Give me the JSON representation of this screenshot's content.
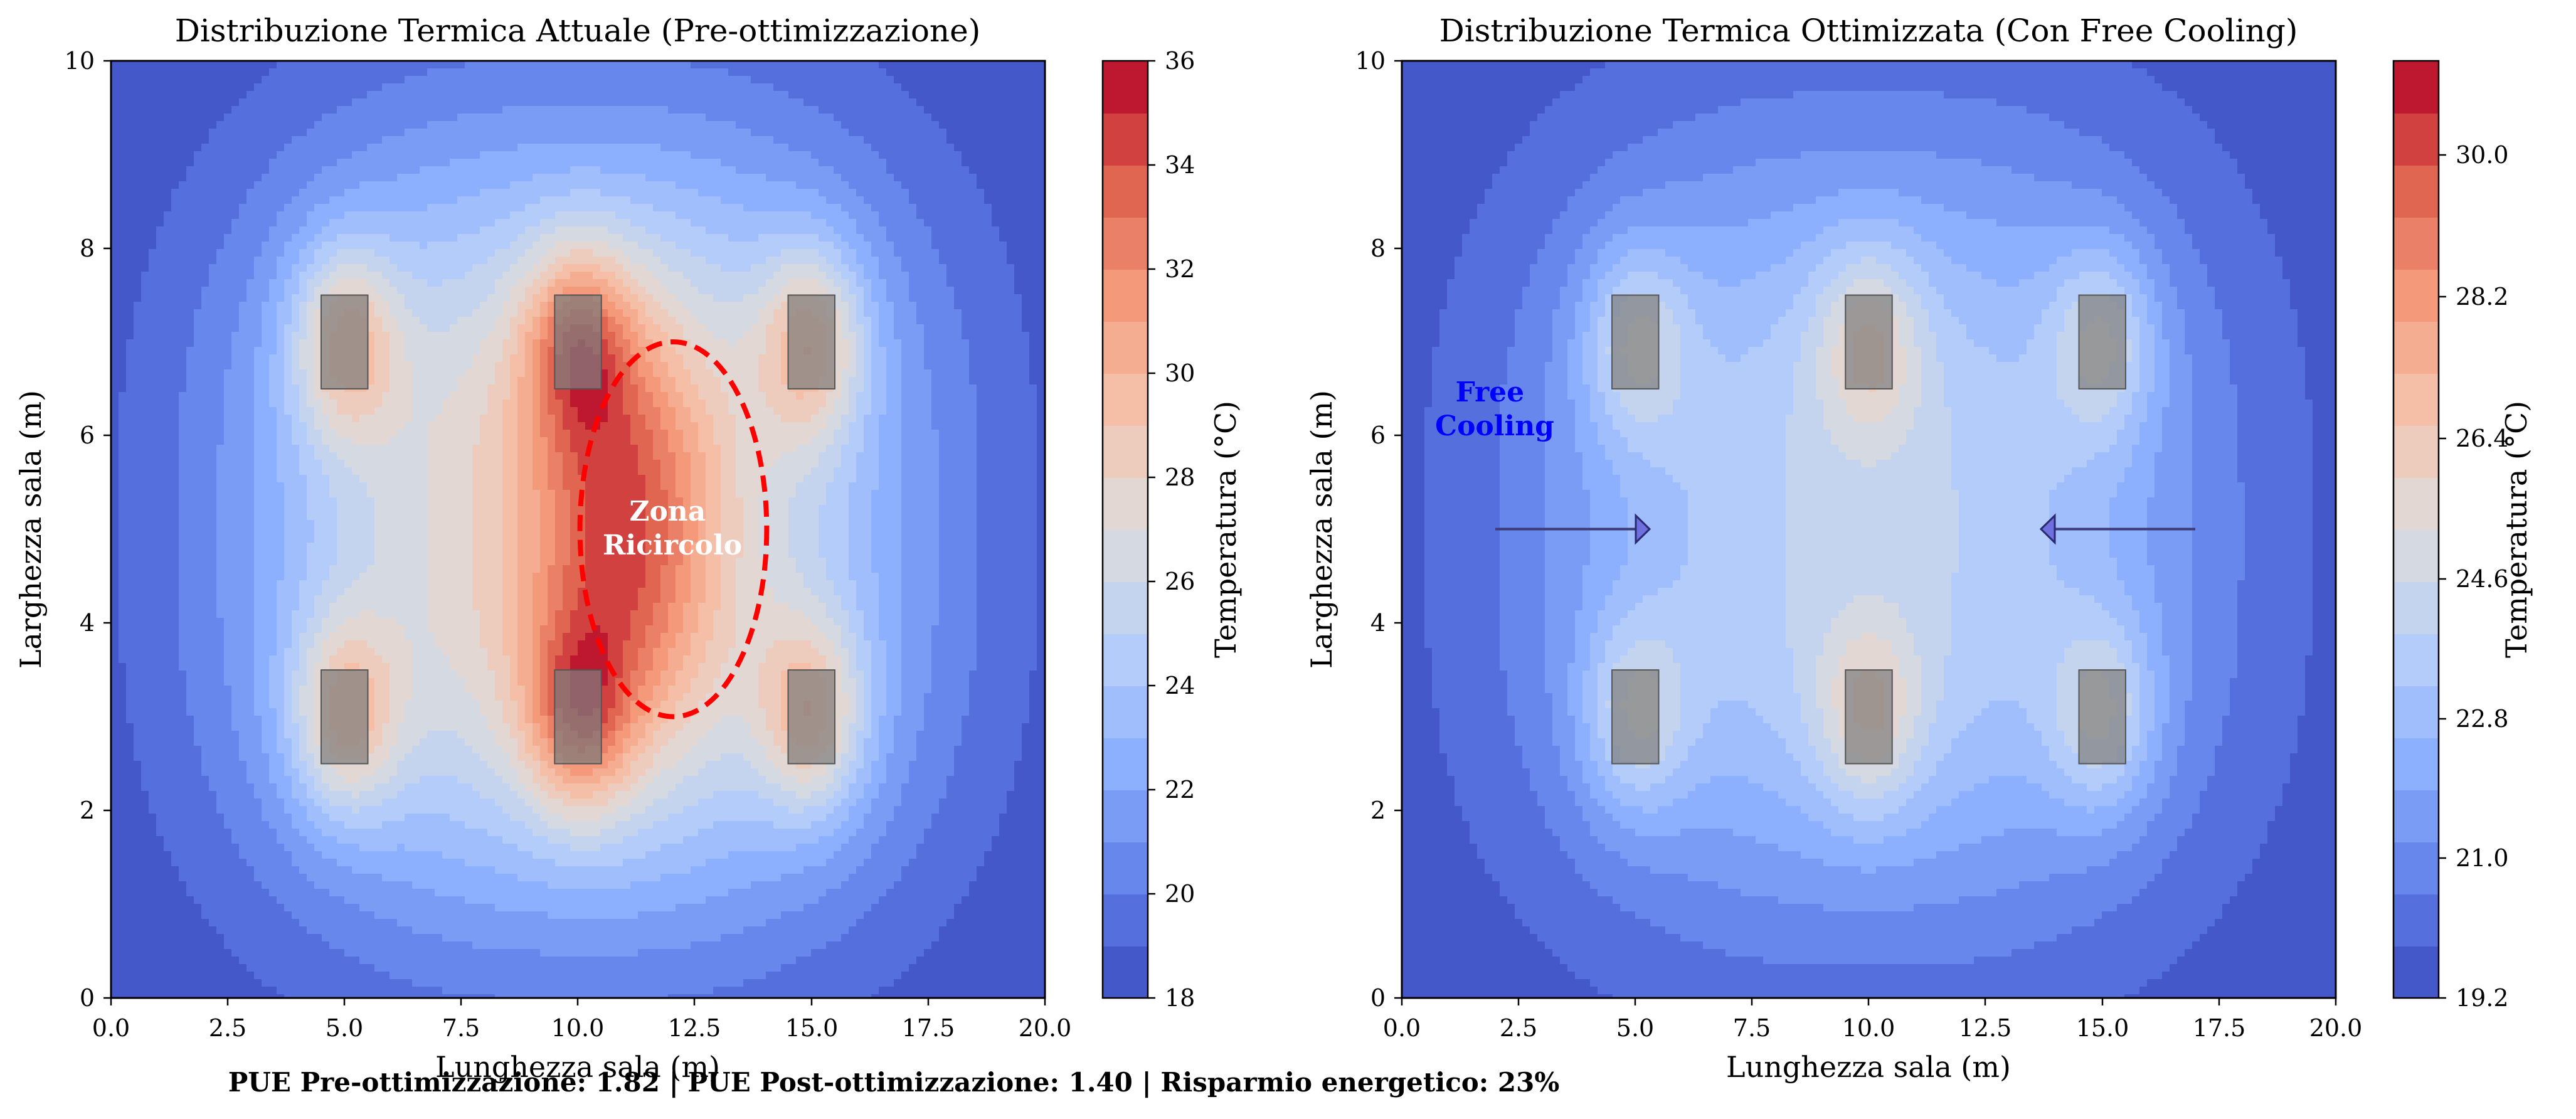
{
  "footer_text": "PUE Pre-ottimizzazione: 1.82 | PUE Post-ottimizzazione: 1.40 | Risparmio energetico: 23%",
  "chart_data": [
    {
      "type": "heatmap",
      "subtype": "filled-contour",
      "title": "Distribuzione Termica Attuale (Pre-ottimizzazione)",
      "xlabel": "Lunghezza sala (m)",
      "ylabel": "Larghezza sala (m)",
      "xlim": [
        0,
        20
      ],
      "ylim": [
        0,
        10
      ],
      "xticks": [
        "0.0",
        "2.5",
        "5.0",
        "7.5",
        "10.0",
        "12.5",
        "15.0",
        "17.5",
        "20.0"
      ],
      "yticks": [
        "0",
        "2",
        "4",
        "6",
        "8",
        "10"
      ],
      "colormap": "coolwarm",
      "colorbar": {
        "label": "Temperatura (°C)",
        "range": [
          18,
          36
        ],
        "ticks": [
          "18",
          "20",
          "22",
          "24",
          "26",
          "28",
          "30",
          "32",
          "34",
          "36"
        ]
      },
      "field": {
        "base": 18,
        "rack_peak": 17.5,
        "blob_peak": 6.5
      },
      "racks": [
        {
          "x": 5,
          "y": 7
        },
        {
          "x": 10,
          "y": 7
        },
        {
          "x": 15,
          "y": 7
        },
        {
          "x": 5,
          "y": 3
        },
        {
          "x": 10,
          "y": 3
        },
        {
          "x": 15,
          "y": 3
        }
      ],
      "annotations": [
        {
          "kind": "dashed-ellipse",
          "label": "Zona\nRicircolo",
          "label_lines": [
            "Zona",
            "Ricircolo"
          ],
          "cx": 12,
          "cy": 5,
          "rx": 2,
          "ry": 2,
          "color": "#ff0000"
        }
      ],
      "grid": false
    },
    {
      "type": "heatmap",
      "subtype": "filled-contour",
      "title": "Distribuzione Termica Ottimizzata (Con Free Cooling)",
      "xlabel": "Lunghezza sala (m)",
      "ylabel": "Larghezza sala (m)",
      "xlim": [
        0,
        20
      ],
      "ylim": [
        0,
        10
      ],
      "xticks": [
        "0.0",
        "2.5",
        "5.0",
        "7.5",
        "10.0",
        "12.5",
        "15.0",
        "17.5",
        "20.0"
      ],
      "yticks": [
        "0",
        "2",
        "4",
        "6",
        "8",
        "10"
      ],
      "colormap": "coolwarm",
      "colorbar": {
        "label": "Temperatura (°C)",
        "range": [
          19.2,
          31.5
        ],
        "ticks": [
          "19.2",
          "21.0",
          "22.8",
          "24.6",
          "26.4",
          "28.2",
          "30.0"
        ]
      },
      "field": {
        "base": 19.3,
        "rack_peak": 8.3,
        "blob_peak": 0
      },
      "racks": [
        {
          "x": 5,
          "y": 7
        },
        {
          "x": 10,
          "y": 7
        },
        {
          "x": 15,
          "y": 7
        },
        {
          "x": 5,
          "y": 3
        },
        {
          "x": 10,
          "y": 3
        },
        {
          "x": 15,
          "y": 3
        }
      ],
      "annotations": [
        {
          "kind": "text",
          "label": "Free\nCooling",
          "label_lines": [
            "Free",
            "Cooling"
          ],
          "x": 2,
          "y": 6.3,
          "color": "#0000ff"
        },
        {
          "kind": "arrow",
          "from": [
            2,
            5
          ],
          "to": [
            5.3,
            5
          ]
        },
        {
          "kind": "arrow",
          "from": [
            17,
            5
          ],
          "to": [
            13.7,
            5
          ]
        }
      ],
      "grid": false
    }
  ]
}
